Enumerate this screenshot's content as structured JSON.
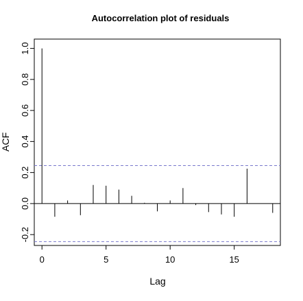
{
  "chart_data": {
    "type": "bar",
    "title": "Autocorrelation plot of residuals",
    "xlabel": "Lag",
    "ylabel": "ACF",
    "xlim": [
      -0.6,
      18.6
    ],
    "ylim": [
      -0.27,
      1.06
    ],
    "x_ticks": [
      0,
      5,
      10,
      15
    ],
    "y_ticks": [
      -0.2,
      0.0,
      0.2,
      0.4,
      0.6,
      0.8,
      1.0
    ],
    "x_tick_labels": [
      "0",
      "5",
      "10",
      "15"
    ],
    "y_tick_labels": [
      "-0.2",
      "0.0",
      "0.2",
      "0.4",
      "0.6",
      "0.8",
      "1.0"
    ],
    "lags": [
      0,
      1,
      2,
      3,
      4,
      5,
      6,
      7,
      8,
      9,
      10,
      11,
      12,
      13,
      14,
      15,
      16,
      17,
      18
    ],
    "values": [
      1.0,
      -0.085,
      0.02,
      -0.075,
      0.12,
      0.115,
      0.09,
      0.05,
      0.005,
      -0.05,
      0.02,
      0.1,
      -0.01,
      -0.055,
      -0.07,
      -0.085,
      0.225,
      0.0,
      -0.06
    ],
    "confidence_bound": 0.245,
    "colors": {
      "bars": "#000000",
      "zero_line": "#000000",
      "confidence_lines": "#7777cc",
      "frame": "#000000"
    }
  }
}
